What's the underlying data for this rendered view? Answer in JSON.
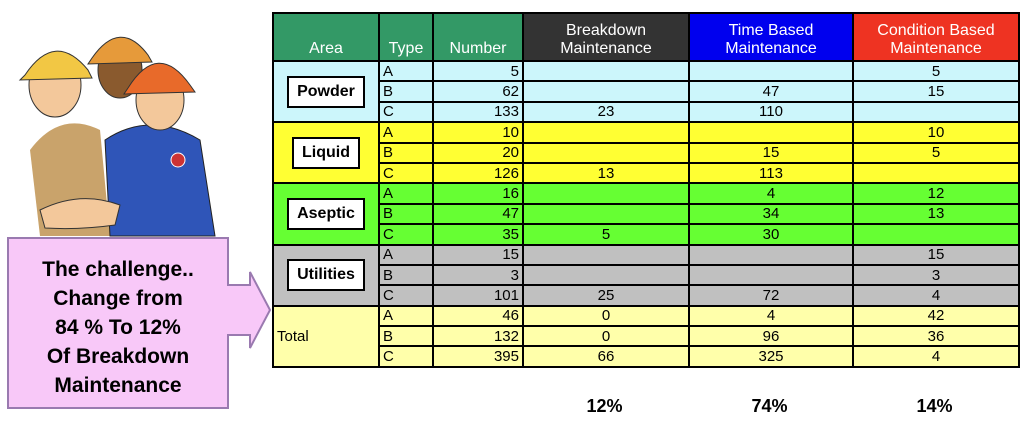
{
  "callout": {
    "lines": [
      "The challenge..",
      "Change from",
      "84 % To 12%",
      "Of Breakdown",
      "Maintenance"
    ]
  },
  "table": {
    "headers": [
      {
        "text": "Area",
        "color": "#339966"
      },
      {
        "text": "Type",
        "color": "#339966"
      },
      {
        "text": "Number",
        "color": "#339966"
      },
      {
        "text": "Breakdown Maintenance",
        "color": "#333333"
      },
      {
        "text": "Time Based Maintenance",
        "color": "#0000ee"
      },
      {
        "text": "Condition Based Maintenance",
        "color": "#ee3322"
      }
    ],
    "groups": [
      {
        "area": "Powder",
        "color": "#ccf6fb",
        "boxed": true,
        "rows": [
          {
            "type": "A",
            "number": 5,
            "condition": 5
          },
          {
            "type": "B",
            "number": 62,
            "time": 47,
            "condition": 15
          },
          {
            "type": "C",
            "number": 133,
            "breakdown": 23,
            "time": 110
          }
        ]
      },
      {
        "area": "Liquid",
        "color": "#ffff33",
        "boxed": true,
        "rows": [
          {
            "type": "A",
            "number": 10,
            "condition": 10
          },
          {
            "type": "B",
            "number": 20,
            "time": 15,
            "condition": 5
          },
          {
            "type": "C",
            "number": 126,
            "breakdown": 13,
            "time": 113
          }
        ]
      },
      {
        "area": "Aseptic",
        "color": "#66ff33",
        "boxed": true,
        "rows": [
          {
            "type": "A",
            "number": 16,
            "time": 4,
            "condition": 12
          },
          {
            "type": "B",
            "number": 47,
            "time": 34,
            "condition": 13
          },
          {
            "type": "C",
            "number": 35,
            "breakdown": 5,
            "time": 30
          }
        ]
      },
      {
        "area": "Utilities",
        "color": "#c0c0c0",
        "boxed": true,
        "rows": [
          {
            "type": "A",
            "number": 15,
            "condition": 15
          },
          {
            "type": "B",
            "number": 3,
            "condition": 3
          },
          {
            "type": "C",
            "number": 101,
            "breakdown": 25,
            "time": 72,
            "condition": 4
          }
        ]
      },
      {
        "area": "Total",
        "color": "#ffffaa",
        "boxed": false,
        "rows": [
          {
            "type": "A",
            "number": 46,
            "breakdown": 0,
            "time": 4,
            "condition": 42
          },
          {
            "type": "B",
            "number": 132,
            "breakdown": 0,
            "time": 96,
            "condition": 36
          },
          {
            "type": "C",
            "number": 395,
            "breakdown": 66,
            "time": 325,
            "condition": 4
          }
        ]
      }
    ],
    "percentages": {
      "breakdown": "12%",
      "time": "74%",
      "condition": "14%"
    }
  }
}
